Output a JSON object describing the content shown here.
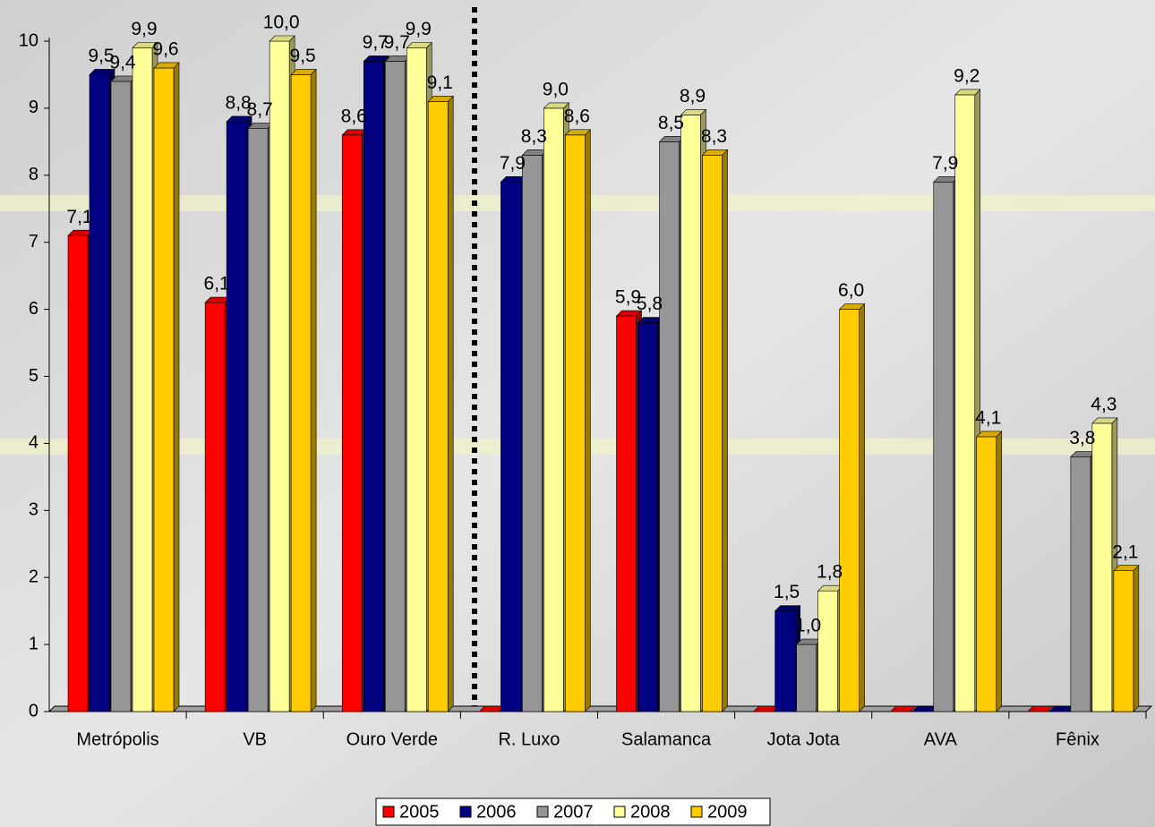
{
  "chart_data": {
    "type": "bar3d",
    "categories": [
      "Metrópolis",
      "VB",
      "Ouro Verde",
      "R. Luxo",
      "Salamanca",
      "Jota Jota",
      "AVA",
      "Fênix"
    ],
    "series": [
      {
        "name": "2005",
        "color": "#ff0000",
        "values": [
          7.1,
          6.1,
          8.6,
          0,
          5.9,
          0,
          0,
          0
        ],
        "value_labels": [
          "7,1",
          "6,1",
          "8,6",
          null,
          "5,9",
          null,
          null,
          null
        ]
      },
      {
        "name": "2006",
        "color": "#000080",
        "values": [
          9.5,
          8.8,
          9.7,
          7.9,
          5.8,
          1.5,
          0,
          0
        ],
        "value_labels": [
          "9,5",
          "8,8",
          "9,7",
          "7,9",
          "5,8",
          "1,5",
          null,
          null
        ]
      },
      {
        "name": "2007",
        "color": "#969696",
        "values": [
          9.4,
          8.7,
          9.7,
          8.3,
          8.5,
          1.0,
          7.9,
          3.8
        ],
        "value_labels": [
          "9,4",
          "8,7",
          "9,7",
          "8,3",
          "8,5",
          "1,0",
          "7,9",
          "3,8"
        ]
      },
      {
        "name": "2008",
        "color": "#ffff99",
        "values": [
          9.9,
          10.0,
          9.9,
          9.0,
          8.9,
          1.8,
          9.2,
          4.3
        ],
        "value_labels": [
          "9,9",
          "10,0",
          "9,9",
          "9,0",
          "8,9",
          "1,8",
          "9,2",
          "4,3"
        ]
      },
      {
        "name": "2009",
        "color": "#ffcc00",
        "values": [
          9.6,
          9.5,
          9.1,
          8.6,
          8.3,
          6.0,
          4.1,
          2.1
        ],
        "value_labels": [
          "9,6",
          "9,5",
          "9,1",
          "8,6",
          "8,3",
          "6,0",
          "4,1",
          "2,1"
        ]
      }
    ],
    "ylim": [
      0,
      10
    ],
    "yticks": [
      0,
      1,
      2,
      3,
      4,
      5,
      6,
      7,
      8,
      9,
      10
    ],
    "legend": "bottom"
  }
}
